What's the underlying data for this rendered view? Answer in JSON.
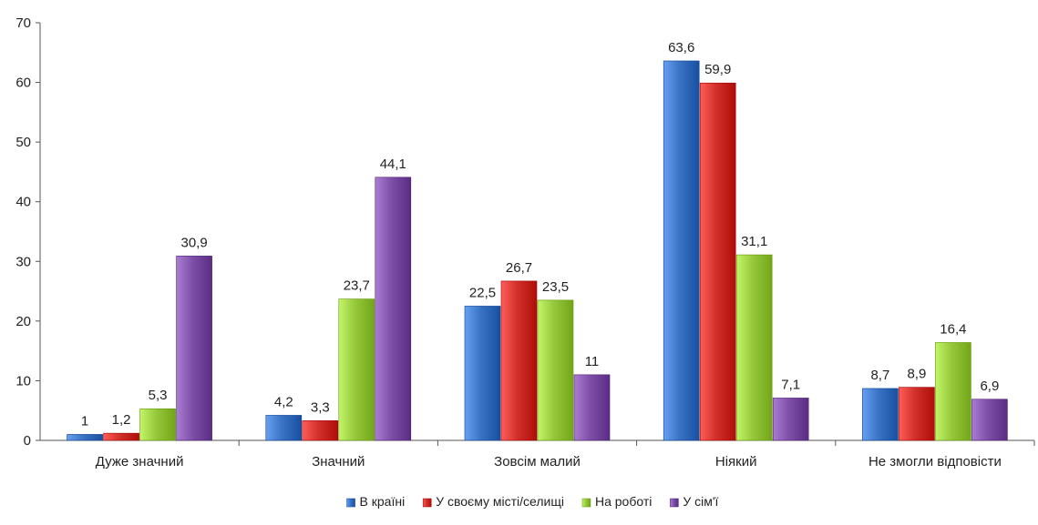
{
  "chart_data": {
    "type": "bar",
    "categories": [
      "Дуже значний",
      "Значний",
      "Зовсім малий",
      "Ніякий",
      "Не змогли відповісти"
    ],
    "series": [
      {
        "name": "В  країні",
        "values": [
          1,
          4.2,
          22.5,
          63.6,
          8.7
        ],
        "value_labels": [
          "1",
          "4,2",
          "22,5",
          "63,6",
          "8,7"
        ],
        "color": "#3a72c4"
      },
      {
        "name": "У своєму  місті/селищі",
        "values": [
          1.2,
          3.3,
          26.7,
          59.9,
          8.9
        ],
        "value_labels": [
          "1,2",
          "3,3",
          "26,7",
          "59,9",
          "8,9"
        ],
        "color": "#d2302a"
      },
      {
        "name": "На  роботі",
        "values": [
          5.3,
          23.7,
          23.5,
          31.1,
          16.4
        ],
        "value_labels": [
          "5,3",
          "23,7",
          "23,5",
          "31,1",
          "16,4"
        ],
        "color": "#96c83c"
      },
      {
        "name": "У  сім'ї",
        "values": [
          30.9,
          44.1,
          11,
          7.1,
          6.9
        ],
        "value_labels": [
          "30,9",
          "44,1",
          "11",
          "7,1",
          "6,9"
        ],
        "color": "#7d4fa6"
      }
    ],
    "yticks": [
      "0",
      "10",
      "20",
      "30",
      "40",
      "50",
      "60",
      "70"
    ],
    "ylim": [
      0,
      70
    ],
    "grid": false,
    "legend_position": "bottom"
  }
}
